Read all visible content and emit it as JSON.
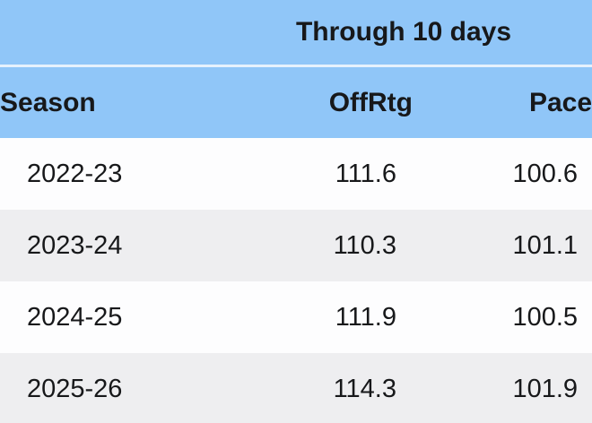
{
  "table": {
    "group_header": "Through 10 days",
    "columns": {
      "season": "Season",
      "offrtg": "OffRtg",
      "pace": "Pace"
    },
    "rows": [
      {
        "season": "2022-23",
        "offrtg": "111.6",
        "pace": "100.6"
      },
      {
        "season": "2023-24",
        "offrtg": "110.3",
        "pace": "101.1"
      },
      {
        "season": "2024-25",
        "offrtg": "111.9",
        "pace": "100.5"
      },
      {
        "season": "2025-26",
        "offrtg": "114.3",
        "pace": "101.9"
      }
    ],
    "colors": {
      "header_bg": "#90c6f8",
      "header_divider": "#e6f1fd",
      "row_bg": "#fdfdfe",
      "row_alt_bg": "#eeeef0",
      "text": "#17181a"
    }
  }
}
